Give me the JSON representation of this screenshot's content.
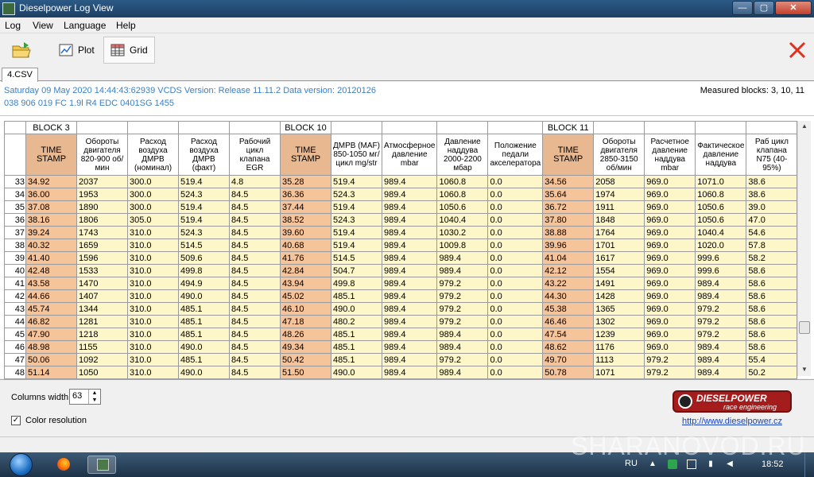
{
  "window": {
    "title": "Dieselpower Log View",
    "min_glyph": "—",
    "max_glyph": "▢",
    "close_glyph": "✕"
  },
  "menu": [
    "Log",
    "View",
    "Language",
    "Help"
  ],
  "toolbar": {
    "plot_label": "Plot",
    "grid_label": "Grid"
  },
  "tab": "4.CSV",
  "info": {
    "line1": "Saturday 09 May 2020 14:44:43:62939 VCDS Version: Release 11.11.2 Data version: 20120126",
    "line2": "038 906 019 FC  1.9l R4 EDC 0401SG  1455",
    "measured": "Measured blocks: 3, 10, 11"
  },
  "grid": {
    "blocks": [
      "BLOCK 3",
      "BLOCK 10",
      "BLOCK 11"
    ],
    "headers": [
      "TIME STAMP",
      "Обороты двигателя 820-900 об/мин",
      "Расход воздуха ДМРВ (номинал)",
      "Расход воздуха ДМРВ (факт)",
      "Рабочий цикл клапана EGR",
      "TIME STAMP",
      "ДМРВ (MAF) 850-1050 мг/цикл mg/str",
      "Атмосферное давление mbar",
      "Давление наддува 2000-2200 мбар",
      "Положение педали акселератора",
      "TIME STAMP",
      "Обороты двигателя 2850-3150 об/мин",
      "Расчетное давление наддува mbar",
      "Фактическое давление наддува",
      "Раб цикл клапана N75 (40-95%)"
    ],
    "rows": [
      {
        "n": "33",
        "v": [
          "34.92",
          "2037",
          "300.0",
          "519.4",
          "4.8",
          "35.28",
          "519.4",
          "989.4",
          "1060.8",
          "0.0",
          "34.56",
          "2058",
          "969.0",
          "1071.0",
          "38.6"
        ]
      },
      {
        "n": "34",
        "v": [
          "36.00",
          "1953",
          "300.0",
          "524.3",
          "84.5",
          "36.36",
          "524.3",
          "989.4",
          "1060.8",
          "0.0",
          "35.64",
          "1974",
          "969.0",
          "1060.8",
          "38.6"
        ]
      },
      {
        "n": "35",
        "v": [
          "37.08",
          "1890",
          "300.0",
          "519.4",
          "84.5",
          "37.44",
          "519.4",
          "989.4",
          "1050.6",
          "0.0",
          "36.72",
          "1911",
          "969.0",
          "1050.6",
          "39.0"
        ]
      },
      {
        "n": "36",
        "v": [
          "38.16",
          "1806",
          "305.0",
          "519.4",
          "84.5",
          "38.52",
          "524.3",
          "989.4",
          "1040.4",
          "0.0",
          "37.80",
          "1848",
          "969.0",
          "1050.6",
          "47.0"
        ]
      },
      {
        "n": "37",
        "v": [
          "39.24",
          "1743",
          "310.0",
          "524.3",
          "84.5",
          "39.60",
          "519.4",
          "989.4",
          "1030.2",
          "0.0",
          "38.88",
          "1764",
          "969.0",
          "1040.4",
          "54.6"
        ]
      },
      {
        "n": "38",
        "v": [
          "40.32",
          "1659",
          "310.0",
          "514.5",
          "84.5",
          "40.68",
          "519.4",
          "989.4",
          "1009.8",
          "0.0",
          "39.96",
          "1701",
          "969.0",
          "1020.0",
          "57.8"
        ]
      },
      {
        "n": "39",
        "v": [
          "41.40",
          "1596",
          "310.0",
          "509.6",
          "84.5",
          "41.76",
          "514.5",
          "989.4",
          "989.4",
          "0.0",
          "41.04",
          "1617",
          "969.0",
          "999.6",
          "58.2"
        ]
      },
      {
        "n": "40",
        "v": [
          "42.48",
          "1533",
          "310.0",
          "499.8",
          "84.5",
          "42.84",
          "504.7",
          "989.4",
          "989.4",
          "0.0",
          "42.12",
          "1554",
          "969.0",
          "999.6",
          "58.6"
        ]
      },
      {
        "n": "41",
        "v": [
          "43.58",
          "1470",
          "310.0",
          "494.9",
          "84.5",
          "43.94",
          "499.8",
          "989.4",
          "979.2",
          "0.0",
          "43.22",
          "1491",
          "969.0",
          "989.4",
          "58.6"
        ]
      },
      {
        "n": "42",
        "v": [
          "44.66",
          "1407",
          "310.0",
          "490.0",
          "84.5",
          "45.02",
          "485.1",
          "989.4",
          "979.2",
          "0.0",
          "44.30",
          "1428",
          "969.0",
          "989.4",
          "58.6"
        ]
      },
      {
        "n": "43",
        "v": [
          "45.74",
          "1344",
          "310.0",
          "485.1",
          "84.5",
          "46.10",
          "490.0",
          "989.4",
          "979.2",
          "0.0",
          "45.38",
          "1365",
          "969.0",
          "979.2",
          "58.6"
        ]
      },
      {
        "n": "44",
        "v": [
          "46.82",
          "1281",
          "310.0",
          "485.1",
          "84.5",
          "47.18",
          "480.2",
          "989.4",
          "979.2",
          "0.0",
          "46.46",
          "1302",
          "969.0",
          "979.2",
          "58.6"
        ]
      },
      {
        "n": "45",
        "v": [
          "47.90",
          "1218",
          "310.0",
          "485.1",
          "84.5",
          "48.26",
          "485.1",
          "989.4",
          "989.4",
          "0.0",
          "47.54",
          "1239",
          "969.0",
          "979.2",
          "58.6"
        ]
      },
      {
        "n": "46",
        "v": [
          "48.98",
          "1155",
          "310.0",
          "490.0",
          "84.5",
          "49.34",
          "485.1",
          "989.4",
          "989.4",
          "0.0",
          "48.62",
          "1176",
          "969.0",
          "989.4",
          "58.6"
        ]
      },
      {
        "n": "47",
        "v": [
          "50.06",
          "1092",
          "310.0",
          "485.1",
          "84.5",
          "50.42",
          "485.1",
          "989.4",
          "979.2",
          "0.0",
          "49.70",
          "1113",
          "979.2",
          "989.4",
          "55.4"
        ]
      },
      {
        "n": "48",
        "v": [
          "51.14",
          "1050",
          "310.0",
          "490.0",
          "84.5",
          "51.50",
          "490.0",
          "989.4",
          "989.4",
          "0.0",
          "50.78",
          "1071",
          "979.2",
          "989.4",
          "50.2"
        ]
      }
    ]
  },
  "bottom": {
    "columns_width_label": "Columns width:",
    "columns_width_value": "63",
    "color_resolution_label": "Color resolution",
    "color_resolution_checked": true,
    "logo_brand": "DIESELPOWER",
    "logo_sub": "race engineering",
    "website": "http://www.dieselpower.cz"
  },
  "taskbar": {
    "lang": "RU",
    "clock": "18:52"
  },
  "watermark": "SHARANOVOD.RU",
  "colors": {
    "block_header": "#e8b890",
    "timestamp_cell": "#f6c49b",
    "value_cell": "#fdf6c9",
    "info_text": "#3b7fc4",
    "close_red": "#e0301e"
  }
}
